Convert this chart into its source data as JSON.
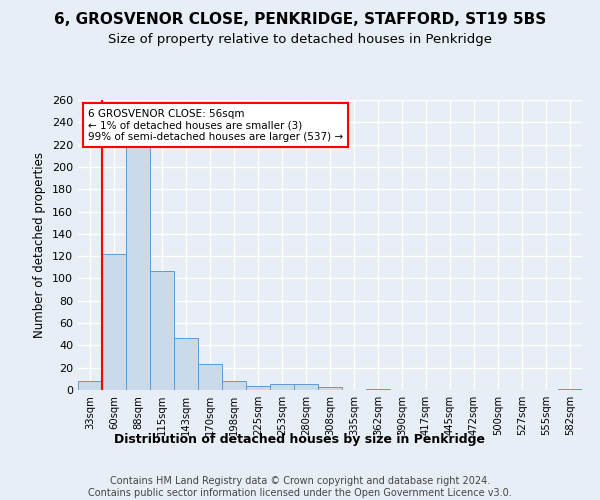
{
  "title1": "6, GROSVENOR CLOSE, PENKRIDGE, STAFFORD, ST19 5BS",
  "title2": "Size of property relative to detached houses in Penkridge",
  "xlabel": "Distribution of detached houses by size in Penkridge",
  "ylabel": "Number of detached properties",
  "bar_labels": [
    "33sqm",
    "60sqm",
    "88sqm",
    "115sqm",
    "143sqm",
    "170sqm",
    "198sqm",
    "225sqm",
    "253sqm",
    "280sqm",
    "308sqm",
    "335sqm",
    "362sqm",
    "390sqm",
    "417sqm",
    "445sqm",
    "472sqm",
    "500sqm",
    "527sqm",
    "555sqm",
    "582sqm"
  ],
  "bar_values": [
    8,
    122,
    218,
    107,
    47,
    23,
    8,
    4,
    5,
    5,
    3,
    0,
    1,
    0,
    0,
    0,
    0,
    0,
    0,
    0,
    1
  ],
  "bar_color": "#c9daea",
  "bar_edge_color": "#5b9bd5",
  "annotation_text_line1": "6 GROSVENOR CLOSE: 56sqm",
  "annotation_text_line2": "← 1% of detached houses are smaller (3)",
  "annotation_text_line3": "99% of semi-detached houses are larger (537) →",
  "annotation_box_color": "white",
  "annotation_box_edge_color": "red",
  "red_line_x": 0.5,
  "ylim": [
    0,
    260
  ],
  "yticks": [
    0,
    20,
    40,
    60,
    80,
    100,
    120,
    140,
    160,
    180,
    200,
    220,
    240,
    260
  ],
  "footer_text": "Contains HM Land Registry data © Crown copyright and database right 2024.\nContains public sector information licensed under the Open Government Licence v3.0.",
  "bg_color": "#e8eef5",
  "grid_color": "white",
  "title_fontsize": 11,
  "subtitle_fontsize": 9.5,
  "footer_fontsize": 7.0
}
